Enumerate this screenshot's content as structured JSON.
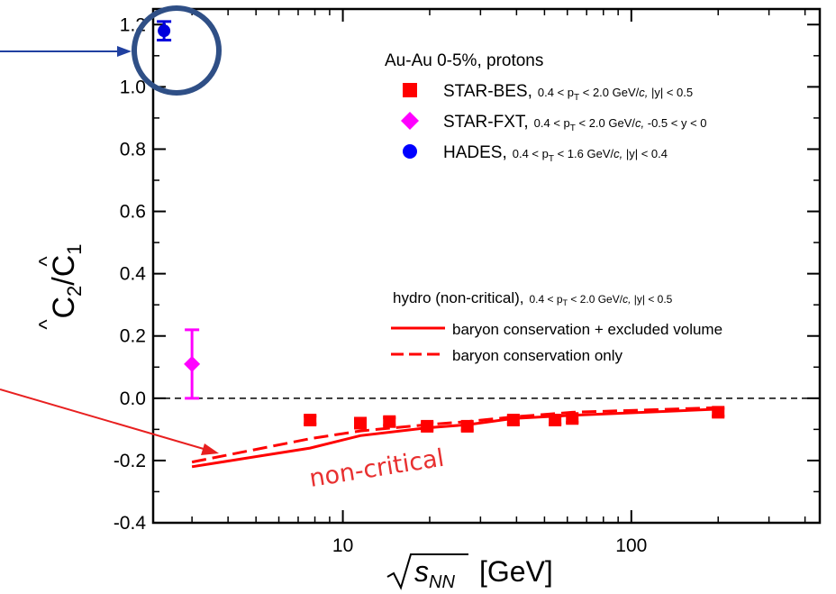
{
  "chart_data": {
    "type": "scatter",
    "xscale": "log",
    "xlim": [
      2.2,
      450
    ],
    "ylim": [
      -0.4,
      1.25
    ],
    "x_ticks": [
      "10",
      "100"
    ],
    "y_ticks": [
      "-0.4",
      "-0.2",
      "0.0",
      "0.2",
      "0.4",
      "0.6",
      "0.8",
      "1.0",
      "1.2"
    ],
    "xlabel": {
      "root": "s",
      "sub": "NN",
      "unit": "[GeV]"
    },
    "ylabel": {
      "main": "C",
      "sub1": "2",
      "slash": "/",
      "main2": "C",
      "sub2": "1"
    },
    "legend_title": "Au-Au 0-5%, protons",
    "series": [
      {
        "name": "STAR-BES",
        "cut": "0.4 < p_T < 2.0 GeV/c, |y| < 0.5",
        "cut_parts": [
          "0.4 < p",
          "T",
          " < 2.0 GeV/",
          "c,",
          " |y| < 0.5"
        ],
        "marker": "square",
        "color": "#ff0000",
        "x": [
          7.7,
          11.5,
          14.5,
          19.6,
          27,
          39,
          54.4,
          62.4,
          200
        ],
        "y": [
          -0.07,
          -0.08,
          -0.075,
          -0.09,
          -0.09,
          -0.07,
          -0.07,
          -0.065,
          -0.045
        ],
        "err": [
          0.012,
          0.012,
          0.012,
          0.012,
          0.012,
          0.012,
          0.012,
          0.012,
          0.012
        ]
      },
      {
        "name": "STAR-FXT",
        "cut": "0.4 < p_T < 2.0 GeV/c, -0.5 < y < 0",
        "cut_parts": [
          "0.4 < p",
          "T",
          " < 2.0 GeV/",
          "c,",
          " -0.5 < y < 0"
        ],
        "marker": "diamond",
        "color": "#ff00ff",
        "x": [
          3.0
        ],
        "y": [
          0.11
        ],
        "err": [
          0.11
        ]
      },
      {
        "name": "HADES",
        "cut": "0.4 < p_T < 1.6 GeV/c, |y| < 0.4",
        "cut_parts": [
          "0.4 < p",
          "T",
          " < 1.6 GeV/",
          "c,",
          " |y| < 0.4"
        ],
        "marker": "circle",
        "color": "#0000ff",
        "legend_color": "#0000ff",
        "plot_color": "#0000dd",
        "x": [
          2.4
        ],
        "y": [
          1.18
        ],
        "err": [
          0.03
        ]
      }
    ],
    "model_title": "hydro (non-critical),",
    "model_cut_parts": [
      "0.4 < p",
      "T",
      " < 2.0 GeV/",
      "c,",
      " |y| < 0.5"
    ],
    "curves": [
      {
        "name": "baryon conservation + excluded volume",
        "style": "solid",
        "color": "#ff0000",
        "x": [
          3.0,
          7.7,
          11.5,
          19.6,
          27,
          39,
          62.4,
          200
        ],
        "y": [
          -0.22,
          -0.16,
          -0.12,
          -0.095,
          -0.085,
          -0.065,
          -0.055,
          -0.035
        ]
      },
      {
        "name": "baryon conservation only",
        "style": "dashed",
        "color": "#ff0000",
        "x": [
          3.0,
          7.7,
          11.5,
          19.6,
          27,
          39,
          62.4,
          200
        ],
        "y": [
          -0.205,
          -0.13,
          -0.105,
          -0.085,
          -0.075,
          -0.06,
          -0.045,
          -0.03
        ]
      }
    ],
    "annotation": {
      "text": "non-critical",
      "color": "#e83030"
    },
    "zero_line": {
      "y": 0.0,
      "style": "dashed"
    },
    "highlight_circle_color": "#2f4f86",
    "blue_arrow_color": "#2040a0",
    "red_arrow_color": "#e82020"
  }
}
